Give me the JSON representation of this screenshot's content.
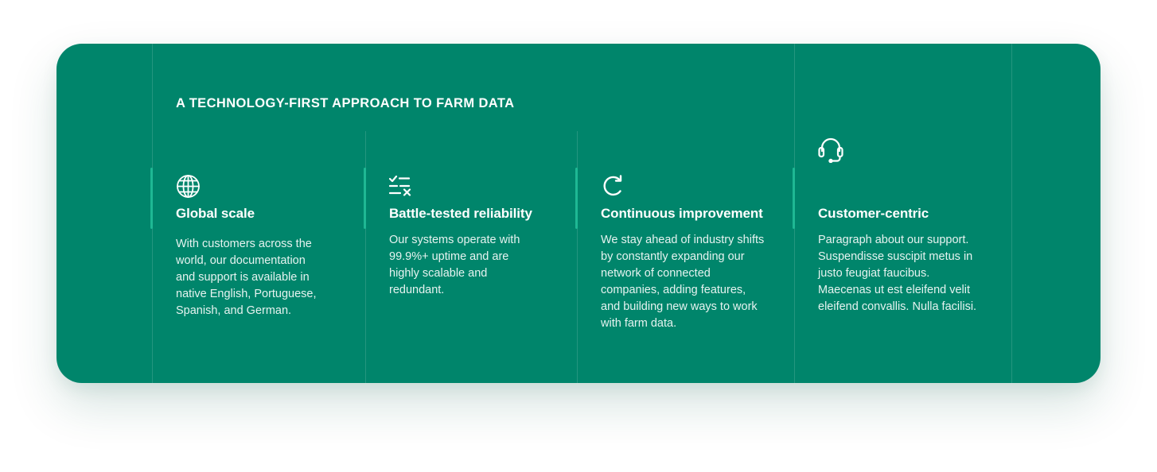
{
  "section": {
    "heading": "A TECHNOLOGY-FIRST APPROACH TO FARM DATA"
  },
  "features": [
    {
      "icon": "globe-icon",
      "title": "Global scale",
      "description": "With customers across the world, our documentation and support is available in native English, Portuguese, Spanish, and German."
    },
    {
      "icon": "checklist-icon",
      "title": "Battle-tested reliability",
      "description": "Our systems operate with 99.9%+ uptime and are highly scalable and redundant."
    },
    {
      "icon": "refresh-icon",
      "title": "Continuous improvement",
      "description": "We stay ahead of industry shifts by constantly expanding our network of connected companies, adding features, and building new ways to work with farm data."
    },
    {
      "icon": "headset-icon",
      "title": "Customer-centric",
      "description": "Paragraph about our support. Suspendisse suscipit metus in justo feugiat faucibus. Maecenas ut est eleifend velit eleifend convallis. Nulla facilisi."
    }
  ],
  "colors": {
    "background": "#00856b",
    "accent": "#1fb894",
    "text": "#ffffff"
  }
}
